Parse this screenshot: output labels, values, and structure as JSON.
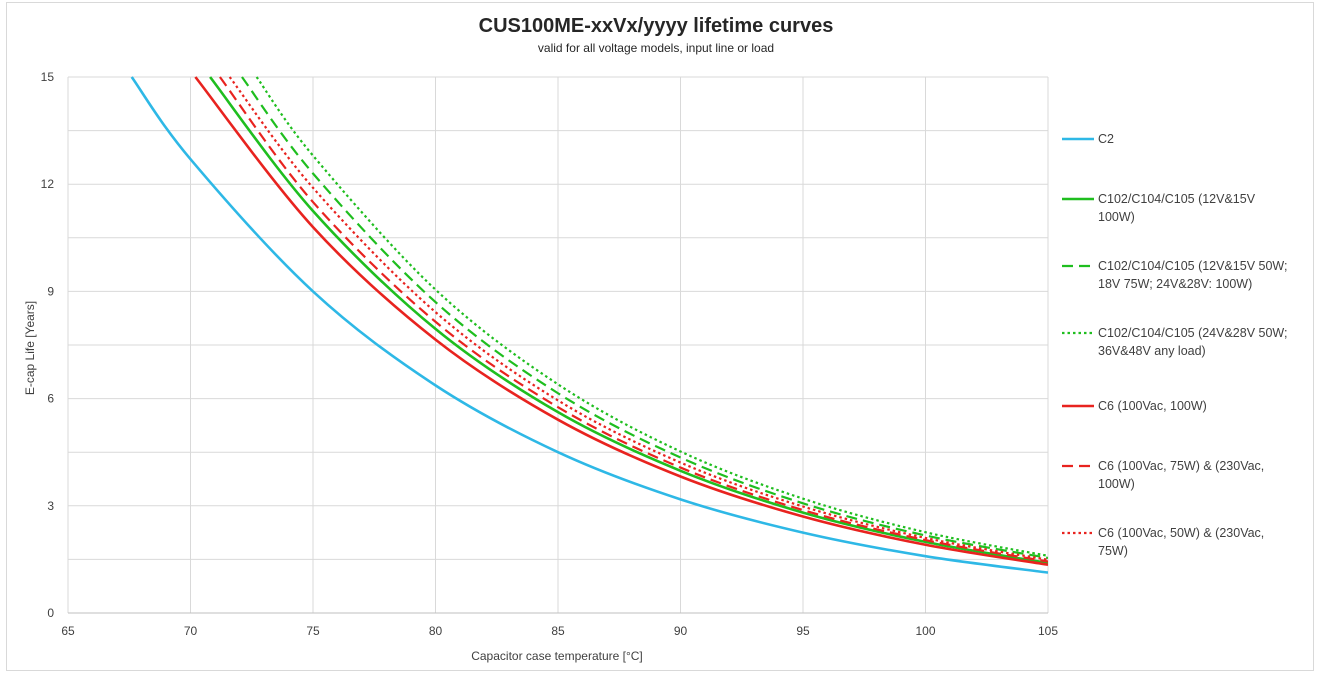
{
  "chart_data": {
    "type": "line",
    "title": "CUS100ME-xxVx/yyyy lifetime curves",
    "subtitle": "valid for all voltage models, input line or load",
    "xlabel": "Capacitor case temperature [°C]",
    "ylabel": "E-cap Life [Years]",
    "xlim": [
      65,
      105
    ],
    "ylim": [
      0,
      15
    ],
    "xticks": [
      65,
      70,
      75,
      80,
      85,
      90,
      95,
      100,
      105
    ],
    "yticks": [
      0,
      3,
      6,
      9,
      12,
      15
    ],
    "grid": true,
    "legend_position": "right",
    "series": [
      {
        "name": "C2",
        "color": "#2eb8e6",
        "dash": "solid",
        "x": [
          67.6,
          70,
          75,
          80,
          85,
          90,
          95,
          100,
          105
        ],
        "y": [
          15.0,
          12.7,
          9.0,
          6.37,
          4.5,
          3.18,
          2.25,
          1.59,
          1.13
        ]
      },
      {
        "name": "C102/C104/C105 (12V&15V 100W)",
        "color": "#1fbe1f",
        "dash": "solid",
        "x": [
          70.8,
          75,
          80,
          85,
          90,
          95,
          100,
          105
        ],
        "y": [
          15.0,
          11.25,
          7.95,
          5.62,
          3.98,
          2.81,
          1.99,
          1.4
        ]
      },
      {
        "name": "C102/C104/C105 (12V&15V 50W; 18V 75W; 24V&28V: 100W)",
        "color": "#1fbe1f",
        "dash": "dashed",
        "x": [
          72.1,
          75,
          80,
          85,
          90,
          95,
          100,
          105
        ],
        "y": [
          15.0,
          12.3,
          8.7,
          6.15,
          4.35,
          3.07,
          2.17,
          1.54
        ]
      },
      {
        "name": "C102/C104/C105 (24V&28V 50W; 36V&48V any load)",
        "color": "#1fbe1f",
        "dash": "dotted",
        "x": [
          72.7,
          75,
          80,
          85,
          90,
          95,
          100,
          105
        ],
        "y": [
          15.0,
          12.8,
          9.05,
          6.4,
          4.52,
          3.2,
          2.26,
          1.6
        ]
      },
      {
        "name": "C6 (100Vac, 100W)",
        "color": "#e8231f",
        "dash": "solid",
        "x": [
          70.2,
          75,
          80,
          85,
          90,
          95,
          100,
          105
        ],
        "y": [
          15.0,
          10.8,
          7.65,
          5.41,
          3.82,
          2.7,
          1.91,
          1.35
        ]
      },
      {
        "name": "C6 (100Vac, 75W) & (230Vac, 100W)",
        "color": "#e8231f",
        "dash": "dashed",
        "x": [
          71.2,
          75,
          80,
          85,
          90,
          95,
          100,
          105
        ],
        "y": [
          15.0,
          11.5,
          8.15,
          5.76,
          4.07,
          2.88,
          2.04,
          1.44
        ]
      },
      {
        "name": "C6 (100Vac, 50W) & (230Vac, 75W)",
        "color": "#e8231f",
        "dash": "dotted",
        "x": [
          71.6,
          75,
          80,
          85,
          90,
          95,
          100,
          105
        ],
        "y": [
          15.0,
          11.9,
          8.42,
          5.95,
          4.21,
          2.98,
          2.1,
          1.49
        ]
      }
    ],
    "legend": [
      {
        "lines": [
          "C2"
        ]
      },
      {
        "lines": [
          "C102/C104/C105 (12V&15V",
          "100W)"
        ]
      },
      {
        "lines": [
          "C102/C104/C105 (12V&15V 50W;",
          "18V 75W; 24V&28V: 100W)"
        ]
      },
      {
        "lines": [
          "C102/C104/C105 (24V&28V 50W;",
          "36V&48V any load)"
        ]
      },
      {
        "lines": [
          "C6 (100Vac, 100W)"
        ]
      },
      {
        "lines": [
          "C6 (100Vac, 75W) & (230Vac,",
          "100W)"
        ]
      },
      {
        "lines": [
          "C6 (100Vac, 50W) & (230Vac,",
          "75W)"
        ]
      }
    ]
  }
}
